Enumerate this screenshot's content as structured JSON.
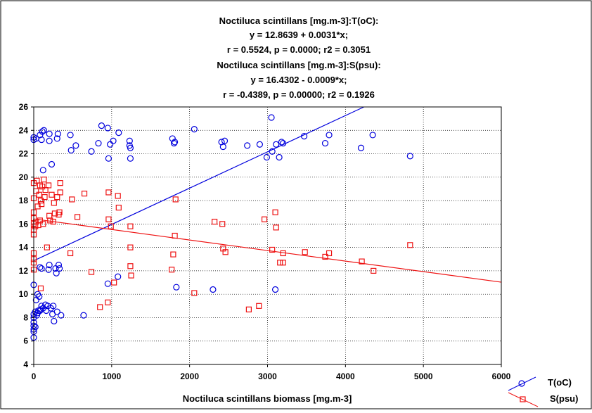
{
  "chart_data": {
    "type": "scatter",
    "title_lines": [
      "Noctiluca scintillans [mg.m-3]:T(oC):",
      "y = 12.8639 + 0.0031*x;",
      "r = 0.5524, p = 0.0000; r2 = 0.3051",
      "Noctiluca scintillans [mg.m-3]:S(psu):",
      "y = 16.4302 - 0.0009*x;",
      "r = -0.4389, p = 0.00000; r2 = 0.1926"
    ],
    "xlabel": "Noctiluca scintillans biomass [mg.m-3]",
    "ylabel": "",
    "xlim": [
      0,
      6000
    ],
    "ylim": [
      4,
      26
    ],
    "x_ticks": [
      0,
      1000,
      2000,
      3000,
      4000,
      5000,
      6000
    ],
    "y_ticks": [
      4,
      6,
      8,
      10,
      12,
      14,
      16,
      18,
      20,
      22,
      24,
      26
    ],
    "grid": true,
    "legend_position": "bottom-right outside",
    "series": [
      {
        "name": "T(oC)",
        "color": "#0000dd",
        "marker": "circle",
        "fit": {
          "intercept": 12.8639,
          "slope": 0.0031
        },
        "points": [
          [
            0,
            6.3
          ],
          [
            0,
            6.8
          ],
          [
            0,
            7.0
          ],
          [
            0,
            7.3
          ],
          [
            0,
            7.6
          ],
          [
            0,
            8.0
          ],
          [
            0,
            8.3
          ],
          [
            0,
            10.8
          ],
          [
            0,
            23.2
          ],
          [
            0,
            23.4
          ],
          [
            20,
            7.2
          ],
          [
            20,
            8.5
          ],
          [
            30,
            9.5
          ],
          [
            30,
            23.3
          ],
          [
            40,
            8.2
          ],
          [
            50,
            8.4
          ],
          [
            50,
            10.0
          ],
          [
            60,
            8.6
          ],
          [
            70,
            9.8
          ],
          [
            80,
            8.6
          ],
          [
            80,
            12.3
          ],
          [
            80,
            23.6
          ],
          [
            90,
            8.7
          ],
          [
            100,
            9.0
          ],
          [
            100,
            12.2
          ],
          [
            100,
            23.2
          ],
          [
            110,
            23.9
          ],
          [
            120,
            20.6
          ],
          [
            120,
            8.8
          ],
          [
            130,
            24.0
          ],
          [
            150,
            9.1
          ],
          [
            160,
            8.6
          ],
          [
            180,
            9.0
          ],
          [
            190,
            12.1
          ],
          [
            200,
            12.5
          ],
          [
            200,
            23.1
          ],
          [
            200,
            23.7
          ],
          [
            220,
            8.8
          ],
          [
            230,
            21.1
          ],
          [
            240,
            8.3
          ],
          [
            250,
            9.0
          ],
          [
            260,
            7.7
          ],
          [
            280,
            12.2
          ],
          [
            290,
            11.8
          ],
          [
            300,
            8.5
          ],
          [
            300,
            23.3
          ],
          [
            310,
            23.7
          ],
          [
            320,
            12.5
          ],
          [
            330,
            12.2
          ],
          [
            350,
            8.2
          ],
          [
            470,
            23.6
          ],
          [
            480,
            22.3
          ],
          [
            540,
            22.7
          ],
          [
            640,
            8.2
          ],
          [
            740,
            22.2
          ],
          [
            830,
            22.9
          ],
          [
            870,
            24.4
          ],
          [
            950,
            24.2
          ],
          [
            950,
            10.9
          ],
          [
            960,
            21.6
          ],
          [
            980,
            22.8
          ],
          [
            1020,
            23.1
          ],
          [
            1080,
            11.5
          ],
          [
            1090,
            23.8
          ],
          [
            1230,
            23.1
          ],
          [
            1230,
            22.7
          ],
          [
            1240,
            22.5
          ],
          [
            1240,
            21.6
          ],
          [
            1780,
            23.3
          ],
          [
            1800,
            22.9
          ],
          [
            1810,
            23.0
          ],
          [
            1830,
            10.6
          ],
          [
            2060,
            24.1
          ],
          [
            2300,
            10.4
          ],
          [
            2410,
            23.0
          ],
          [
            2430,
            22.6
          ],
          [
            2450,
            23.1
          ],
          [
            2740,
            22.7
          ],
          [
            2900,
            22.8
          ],
          [
            2990,
            21.7
          ],
          [
            3050,
            25.1
          ],
          [
            3060,
            22.2
          ],
          [
            3100,
            10.4
          ],
          [
            3110,
            22.8
          ],
          [
            3150,
            21.7
          ],
          [
            3180,
            23.0
          ],
          [
            3200,
            22.9
          ],
          [
            3470,
            23.5
          ],
          [
            3740,
            22.9
          ],
          [
            3790,
            23.6
          ],
          [
            4200,
            22.5
          ],
          [
            4350,
            23.6
          ],
          [
            4830,
            21.8
          ]
        ]
      },
      {
        "name": "S(psu)",
        "color": "#ee1111",
        "marker": "square",
        "fit": {
          "intercept": 16.4302,
          "slope": -0.0009
        },
        "points": [
          [
            0,
            12.1
          ],
          [
            0,
            12.7
          ],
          [
            0,
            13.0
          ],
          [
            0,
            13.5
          ],
          [
            0,
            15.1
          ],
          [
            0,
            15.5
          ],
          [
            0,
            16.0
          ],
          [
            0,
            16.5
          ],
          [
            0,
            17.0
          ],
          [
            0,
            18.2
          ],
          [
            0,
            19.5
          ],
          [
            20,
            15.8
          ],
          [
            30,
            16.2
          ],
          [
            30,
            18.8
          ],
          [
            40,
            19.7
          ],
          [
            50,
            17.5
          ],
          [
            60,
            15.9
          ],
          [
            70,
            18.5
          ],
          [
            80,
            16.3
          ],
          [
            80,
            19.3
          ],
          [
            90,
            10.5
          ],
          [
            90,
            18.0
          ],
          [
            100,
            17.7
          ],
          [
            110,
            19.2
          ],
          [
            120,
            16.0
          ],
          [
            130,
            19.8
          ],
          [
            140,
            18.3
          ],
          [
            150,
            18.9
          ],
          [
            170,
            14.0
          ],
          [
            190,
            19.3
          ],
          [
            200,
            16.7
          ],
          [
            210,
            16.3
          ],
          [
            230,
            18.5
          ],
          [
            250,
            16.2
          ],
          [
            260,
            17.8
          ],
          [
            270,
            16.9
          ],
          [
            300,
            18.3
          ],
          [
            320,
            16.8
          ],
          [
            330,
            17.0
          ],
          [
            340,
            19.5
          ],
          [
            340,
            18.7
          ],
          [
            470,
            13.5
          ],
          [
            490,
            18.1
          ],
          [
            560,
            16.6
          ],
          [
            650,
            18.6
          ],
          [
            740,
            11.9
          ],
          [
            850,
            8.9
          ],
          [
            950,
            9.3
          ],
          [
            960,
            16.4
          ],
          [
            960,
            18.7
          ],
          [
            990,
            15.8
          ],
          [
            1030,
            11.0
          ],
          [
            1080,
            18.4
          ],
          [
            1090,
            17.4
          ],
          [
            1240,
            15.8
          ],
          [
            1240,
            14.0
          ],
          [
            1240,
            12.4
          ],
          [
            1250,
            11.6
          ],
          [
            1770,
            12.1
          ],
          [
            1790,
            13.4
          ],
          [
            1810,
            15.0
          ],
          [
            1820,
            18.1
          ],
          [
            2060,
            10.1
          ],
          [
            2320,
            16.2
          ],
          [
            2420,
            16.0
          ],
          [
            2430,
            13.9
          ],
          [
            2460,
            13.6
          ],
          [
            2760,
            8.7
          ],
          [
            2890,
            9.0
          ],
          [
            2960,
            16.4
          ],
          [
            3060,
            13.8
          ],
          [
            3100,
            17.0
          ],
          [
            3110,
            15.7
          ],
          [
            3160,
            12.7
          ],
          [
            3200,
            12.7
          ],
          [
            3200,
            13.5
          ],
          [
            3480,
            13.6
          ],
          [
            3740,
            13.2
          ],
          [
            3790,
            13.5
          ],
          [
            4210,
            12.8
          ],
          [
            4360,
            12.0
          ],
          [
            4830,
            14.2
          ]
        ]
      }
    ]
  }
}
